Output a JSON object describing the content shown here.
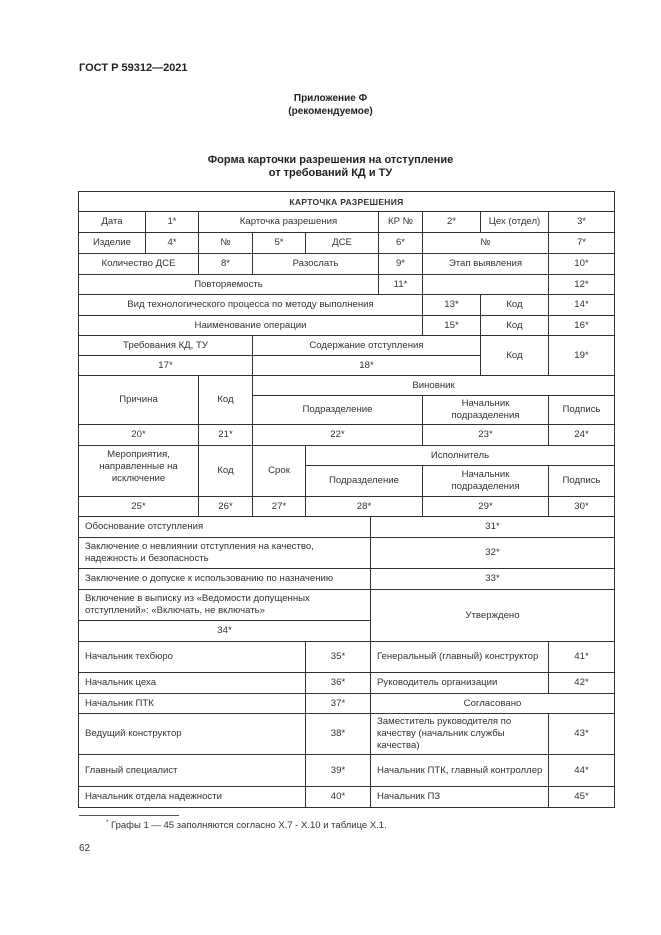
{
  "header": {
    "standard": "ГОСТ Р 59312—2021"
  },
  "appendix": {
    "name": "Приложение Ф",
    "status": "(рекомендуемое)"
  },
  "form_title": {
    "line1": "Форма карточки разрешения на отступление",
    "line2": "от требований КД и ТУ"
  },
  "table": {
    "cells": [
      "КАРТОЧКА РАЗРЕШЕНИЯ",
      "Дата",
      "1*",
      "Карточка разрешения",
      "КР №",
      "2*",
      "Цех (отдел)",
      "3*",
      "Изделие",
      "4*",
      "№",
      "5*",
      "ДСЕ",
      "6*",
      "№",
      "7*",
      "Количество ДСЕ",
      "8*",
      "Разослать",
      "9*",
      "Этап выявления",
      "10*",
      "Повторяемость",
      "11*",
      "",
      "12*",
      "Вид технологического процесса по методу выполнения",
      "13*",
      "Код",
      "14*",
      "Наименование операции",
      "15*",
      "Код",
      "16*",
      "Требования КД, ТУ",
      "Содержание отступления",
      "Код",
      "19*",
      "17*",
      "18*",
      "Причина",
      "Код",
      "Виновник",
      "Подразделение",
      "Начальник подразделения",
      "Подпись",
      "20*",
      "21*",
      "22*",
      "23*",
      "24*",
      "Мероприятия, направленные на исключение",
      "Код",
      "Срок",
      "Исполнитель",
      "Подразделение",
      "Начальник подразделения",
      "Подпись",
      "25*",
      "26*",
      "27*",
      "28*",
      "29*",
      "30*",
      "Обоснование отступления",
      "31*",
      "Заключение о невлиянии отступления на качество, надежность и безопасность",
      "32*",
      "Заключение о допуске к использованию по назначению",
      "33*",
      "Включение в выписку из «Ведомости допущенных отступлений»: «Включать, не включать»",
      "Утверждено",
      "34*",
      "Начальник техбюро",
      "35*",
      "Генеральный (главный) конструктор",
      "41*",
      "Начальник цеха",
      "36*",
      "Руководитель организации",
      "42*",
      "Начальник ПТК",
      "37*",
      "Согласовано",
      "Ведущий конструктор",
      "38*",
      "Заместитель руководителя по качеству (начальник службы качества)",
      "43*",
      "Главный специалист",
      "39*",
      "Начальник ПТК, главный контроллер",
      "44*",
      "Начальник отдела надежности",
      "40*",
      "Начальник ПЗ",
      "45*"
    ]
  },
  "footnote": {
    "mark": "*",
    "text": "Графы 1 — 45 заполняются согласно Х.7 - Х.10 и таблице Х.1."
  },
  "page_number": "62"
}
